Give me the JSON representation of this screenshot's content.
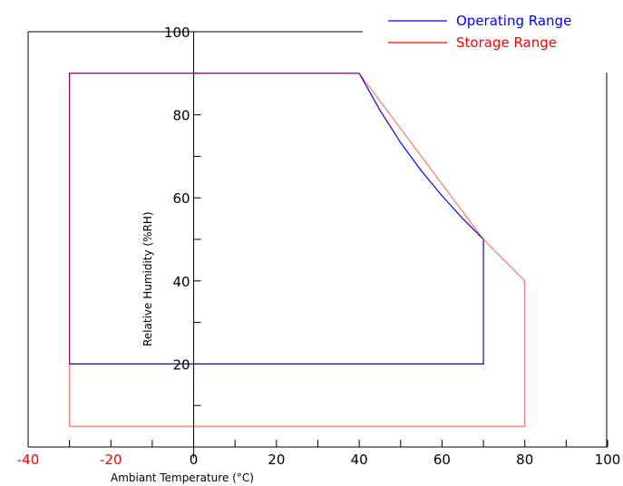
{
  "chart_data": {
    "type": "line",
    "xlabel": "Ambiant Temperature (°C)",
    "ylabel": "Relative Humidity (%RH)",
    "xlim": [
      -40,
      100
    ],
    "ylim": [
      0,
      100
    ],
    "x_ticks": [
      -40,
      -20,
      0,
      20,
      40,
      60,
      80,
      100
    ],
    "y_ticks": [
      20,
      40,
      60,
      80,
      100
    ],
    "x_tick_colors": {
      "-40": "#ff0000",
      "-20": "#ff0000"
    },
    "legend_position": "top-right",
    "grid": false,
    "series": [
      {
        "name": "Operating Range",
        "color": "#0000ff",
        "points": [
          [
            -30,
            20
          ],
          [
            -30,
            90
          ],
          [
            40,
            90
          ],
          [
            45,
            81.1
          ],
          [
            50,
            73.3
          ],
          [
            55,
            66.5
          ],
          [
            60,
            60.5
          ],
          [
            65,
            55
          ],
          [
            70,
            50
          ],
          [
            70,
            20
          ],
          [
            -30,
            20
          ]
        ]
      },
      {
        "name": "Storage Range",
        "color": "#ff0000",
        "points": [
          [
            -30,
            5
          ],
          [
            -30,
            90
          ],
          [
            40,
            90
          ],
          [
            70,
            50
          ],
          [
            80,
            40
          ],
          [
            80,
            5
          ],
          [
            -30,
            5
          ]
        ]
      }
    ]
  }
}
